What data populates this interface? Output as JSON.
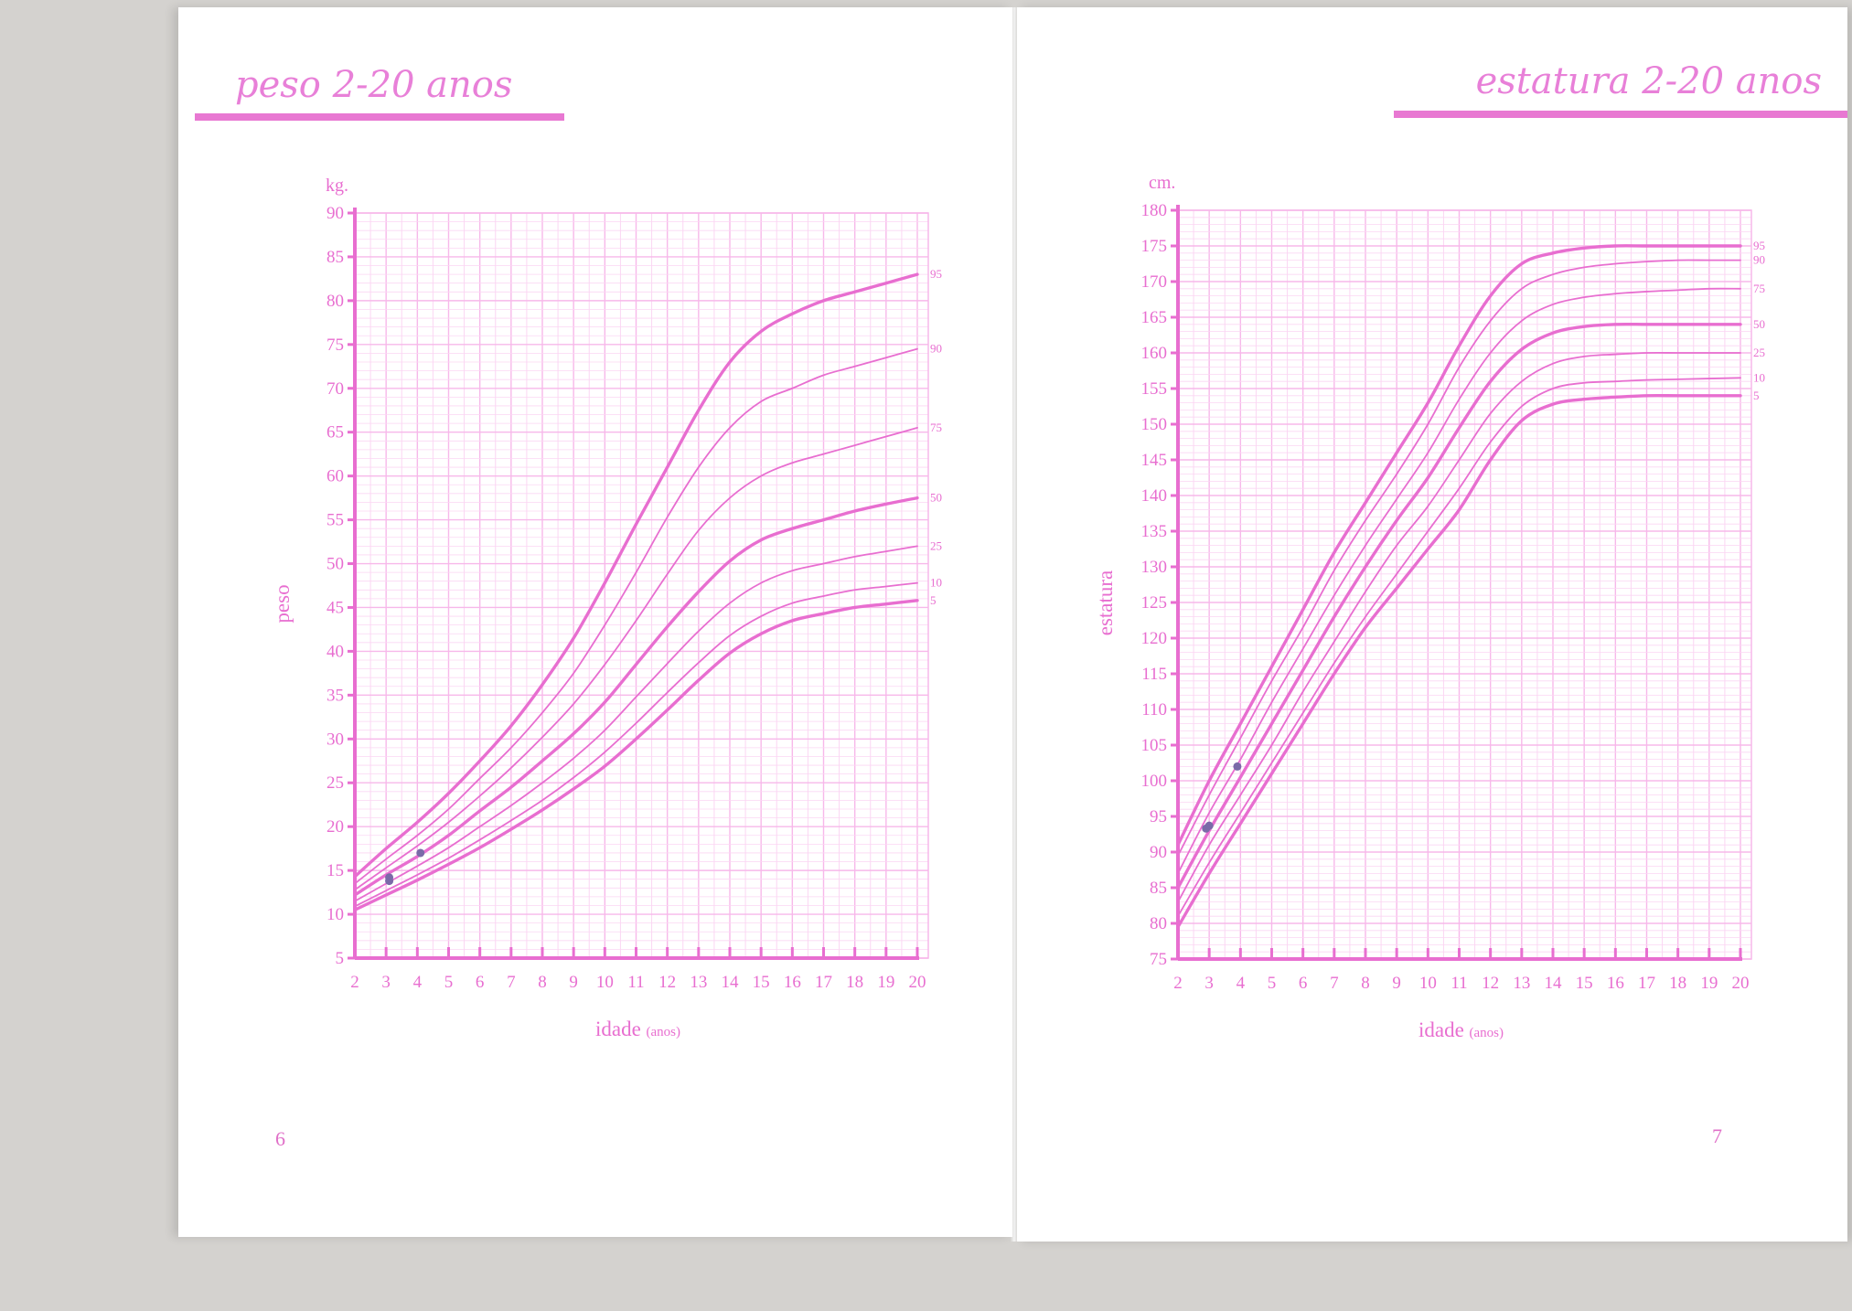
{
  "pages": {
    "left": {
      "title": "peso 2-20 anos",
      "page_number": "6"
    },
    "right": {
      "title": "estatura 2-20 anos",
      "page_number": "7"
    }
  },
  "colors": {
    "ink": "#e86ed0",
    "grid_major": "#f7b8ea",
    "grid_minor": "#fbd6f3",
    "curve": "#e86ed0",
    "page": "#ffffff"
  },
  "chart_data": [
    {
      "type": "line",
      "name": "peso",
      "unit": "kg.",
      "ylabel": "peso",
      "xlabel": "idade",
      "xlabel_unit": "(anos)",
      "xlim": [
        2,
        20
      ],
      "ylim": [
        5,
        90
      ],
      "x_ticks": [
        2,
        3,
        4,
        5,
        6,
        7,
        8,
        9,
        10,
        11,
        12,
        13,
        14,
        15,
        16,
        17,
        18,
        19,
        20
      ],
      "y_ticks": [
        5,
        10,
        15,
        20,
        25,
        30,
        35,
        40,
        45,
        50,
        55,
        60,
        65,
        70,
        75,
        80,
        85,
        90
      ],
      "grid": true,
      "x": [
        2,
        3,
        4,
        5,
        6,
        7,
        8,
        9,
        10,
        11,
        12,
        13,
        14,
        15,
        16,
        17,
        18,
        19,
        20
      ],
      "series": [
        {
          "name": "95",
          "bold": true,
          "values": [
            14.3,
            17.5,
            20.5,
            23.8,
            27.5,
            31.5,
            36.2,
            41.5,
            47.8,
            54.5,
            61.0,
            67.5,
            73.0,
            76.5,
            78.5,
            80.0,
            81.0,
            82.0,
            83.0
          ]
        },
        {
          "name": "90",
          "bold": false,
          "values": [
            13.5,
            16.3,
            19.0,
            22.0,
            25.5,
            29.0,
            33.0,
            37.5,
            43.0,
            49.0,
            55.3,
            61.0,
            65.5,
            68.5,
            70.0,
            71.5,
            72.5,
            73.5,
            74.5
          ]
        },
        {
          "name": "75",
          "bold": false,
          "values": [
            12.8,
            15.3,
            17.8,
            20.5,
            23.5,
            26.7,
            30.2,
            34.0,
            38.5,
            43.5,
            48.8,
            53.8,
            57.5,
            60.0,
            61.5,
            62.5,
            63.5,
            64.5,
            65.5
          ]
        },
        {
          "name": "50",
          "bold": true,
          "values": [
            12.2,
            14.5,
            16.6,
            19.0,
            21.8,
            24.5,
            27.5,
            30.6,
            34.2,
            38.5,
            42.8,
            46.8,
            50.3,
            52.7,
            54.0,
            55.0,
            56.0,
            56.8,
            57.5
          ]
        },
        {
          "name": "25",
          "bold": false,
          "values": [
            11.5,
            13.5,
            15.5,
            17.6,
            20.0,
            22.4,
            25.0,
            27.8,
            31.0,
            34.8,
            38.6,
            42.3,
            45.5,
            47.8,
            49.2,
            50.0,
            50.8,
            51.4,
            52.0
          ]
        },
        {
          "name": "10",
          "bold": false,
          "values": [
            10.9,
            12.7,
            14.5,
            16.4,
            18.5,
            20.7,
            23.0,
            25.6,
            28.5,
            31.8,
            35.3,
            38.7,
            41.8,
            44.0,
            45.5,
            46.3,
            47.0,
            47.4,
            47.8
          ]
        },
        {
          "name": "5",
          "bold": true,
          "values": [
            10.5,
            12.2,
            13.9,
            15.7,
            17.6,
            19.7,
            21.9,
            24.3,
            26.9,
            30.0,
            33.3,
            36.7,
            39.8,
            42.0,
            43.5,
            44.3,
            45.0,
            45.4,
            45.8
          ]
        }
      ],
      "marked_points": [
        {
          "x": 3.1,
          "y": 13.8
        },
        {
          "x": 3.1,
          "y": 14.2
        },
        {
          "x": 4.1,
          "y": 17.0
        }
      ]
    },
    {
      "type": "line",
      "name": "estatura",
      "unit": "cm.",
      "ylabel": "estatura",
      "xlabel": "idade",
      "xlabel_unit": "(anos)",
      "xlim": [
        2,
        20
      ],
      "ylim": [
        75,
        180
      ],
      "x_ticks": [
        2,
        3,
        4,
        5,
        6,
        7,
        8,
        9,
        10,
        11,
        12,
        13,
        14,
        15,
        16,
        17,
        18,
        19,
        20
      ],
      "y_ticks": [
        75,
        80,
        85,
        90,
        95,
        100,
        105,
        110,
        115,
        120,
        125,
        130,
        135,
        140,
        145,
        150,
        155,
        160,
        165,
        170,
        175,
        180
      ],
      "grid": true,
      "x": [
        2,
        3,
        4,
        5,
        6,
        7,
        8,
        9,
        10,
        11,
        12,
        13,
        14,
        15,
        16,
        17,
        18,
        19,
        20
      ],
      "series": [
        {
          "name": "95",
          "bold": true,
          "values": [
            91.0,
            100.0,
            108.0,
            116.0,
            124.0,
            132.0,
            139.0,
            146.0,
            153.0,
            161.0,
            168.0,
            172.5,
            174.0,
            174.7,
            175.0,
            175.0,
            175.0,
            175.0,
            175.0
          ]
        },
        {
          "name": "90",
          "bold": false,
          "values": [
            89.5,
            98.0,
            106.0,
            114.0,
            121.5,
            129.5,
            136.5,
            143.0,
            150.0,
            158.0,
            164.5,
            169.0,
            171.0,
            172.0,
            172.5,
            172.8,
            173.0,
            173.0,
            173.0
          ]
        },
        {
          "name": "75",
          "bold": false,
          "values": [
            87.0,
            95.5,
            103.0,
            111.0,
            118.5,
            126.0,
            133.0,
            139.5,
            146.0,
            153.5,
            160.0,
            164.5,
            166.8,
            167.8,
            168.3,
            168.6,
            168.8,
            169.0,
            169.0
          ]
        },
        {
          "name": "50",
          "bold": true,
          "values": [
            85.0,
            93.0,
            100.5,
            108.0,
            115.5,
            123.0,
            130.0,
            136.5,
            142.5,
            149.5,
            156.0,
            160.5,
            162.8,
            163.7,
            164.0,
            164.0,
            164.0,
            164.0,
            164.0
          ]
        },
        {
          "name": "25",
          "bold": false,
          "values": [
            83.0,
            91.0,
            98.0,
            105.0,
            112.5,
            119.5,
            126.5,
            133.0,
            138.5,
            145.0,
            151.5,
            156.0,
            158.5,
            159.5,
            159.8,
            160.0,
            160.0,
            160.0,
            160.0
          ]
        },
        {
          "name": "10",
          "bold": false,
          "values": [
            81.0,
            88.5,
            95.5,
            102.5,
            109.5,
            116.5,
            123.0,
            129.0,
            135.0,
            141.0,
            147.5,
            152.5,
            155.0,
            155.8,
            156.0,
            156.2,
            156.3,
            156.4,
            156.5
          ]
        },
        {
          "name": "5",
          "bold": true,
          "values": [
            79.5,
            87.0,
            94.0,
            101.0,
            108.0,
            115.0,
            121.5,
            127.0,
            132.5,
            138.0,
            145.0,
            150.5,
            152.8,
            153.5,
            153.8,
            154.0,
            154.0,
            154.0,
            154.0
          ]
        }
      ],
      "marked_points": [
        {
          "x": 2.9,
          "y": 93.3
        },
        {
          "x": 3.0,
          "y": 93.7
        },
        {
          "x": 3.9,
          "y": 102.0
        }
      ]
    }
  ]
}
